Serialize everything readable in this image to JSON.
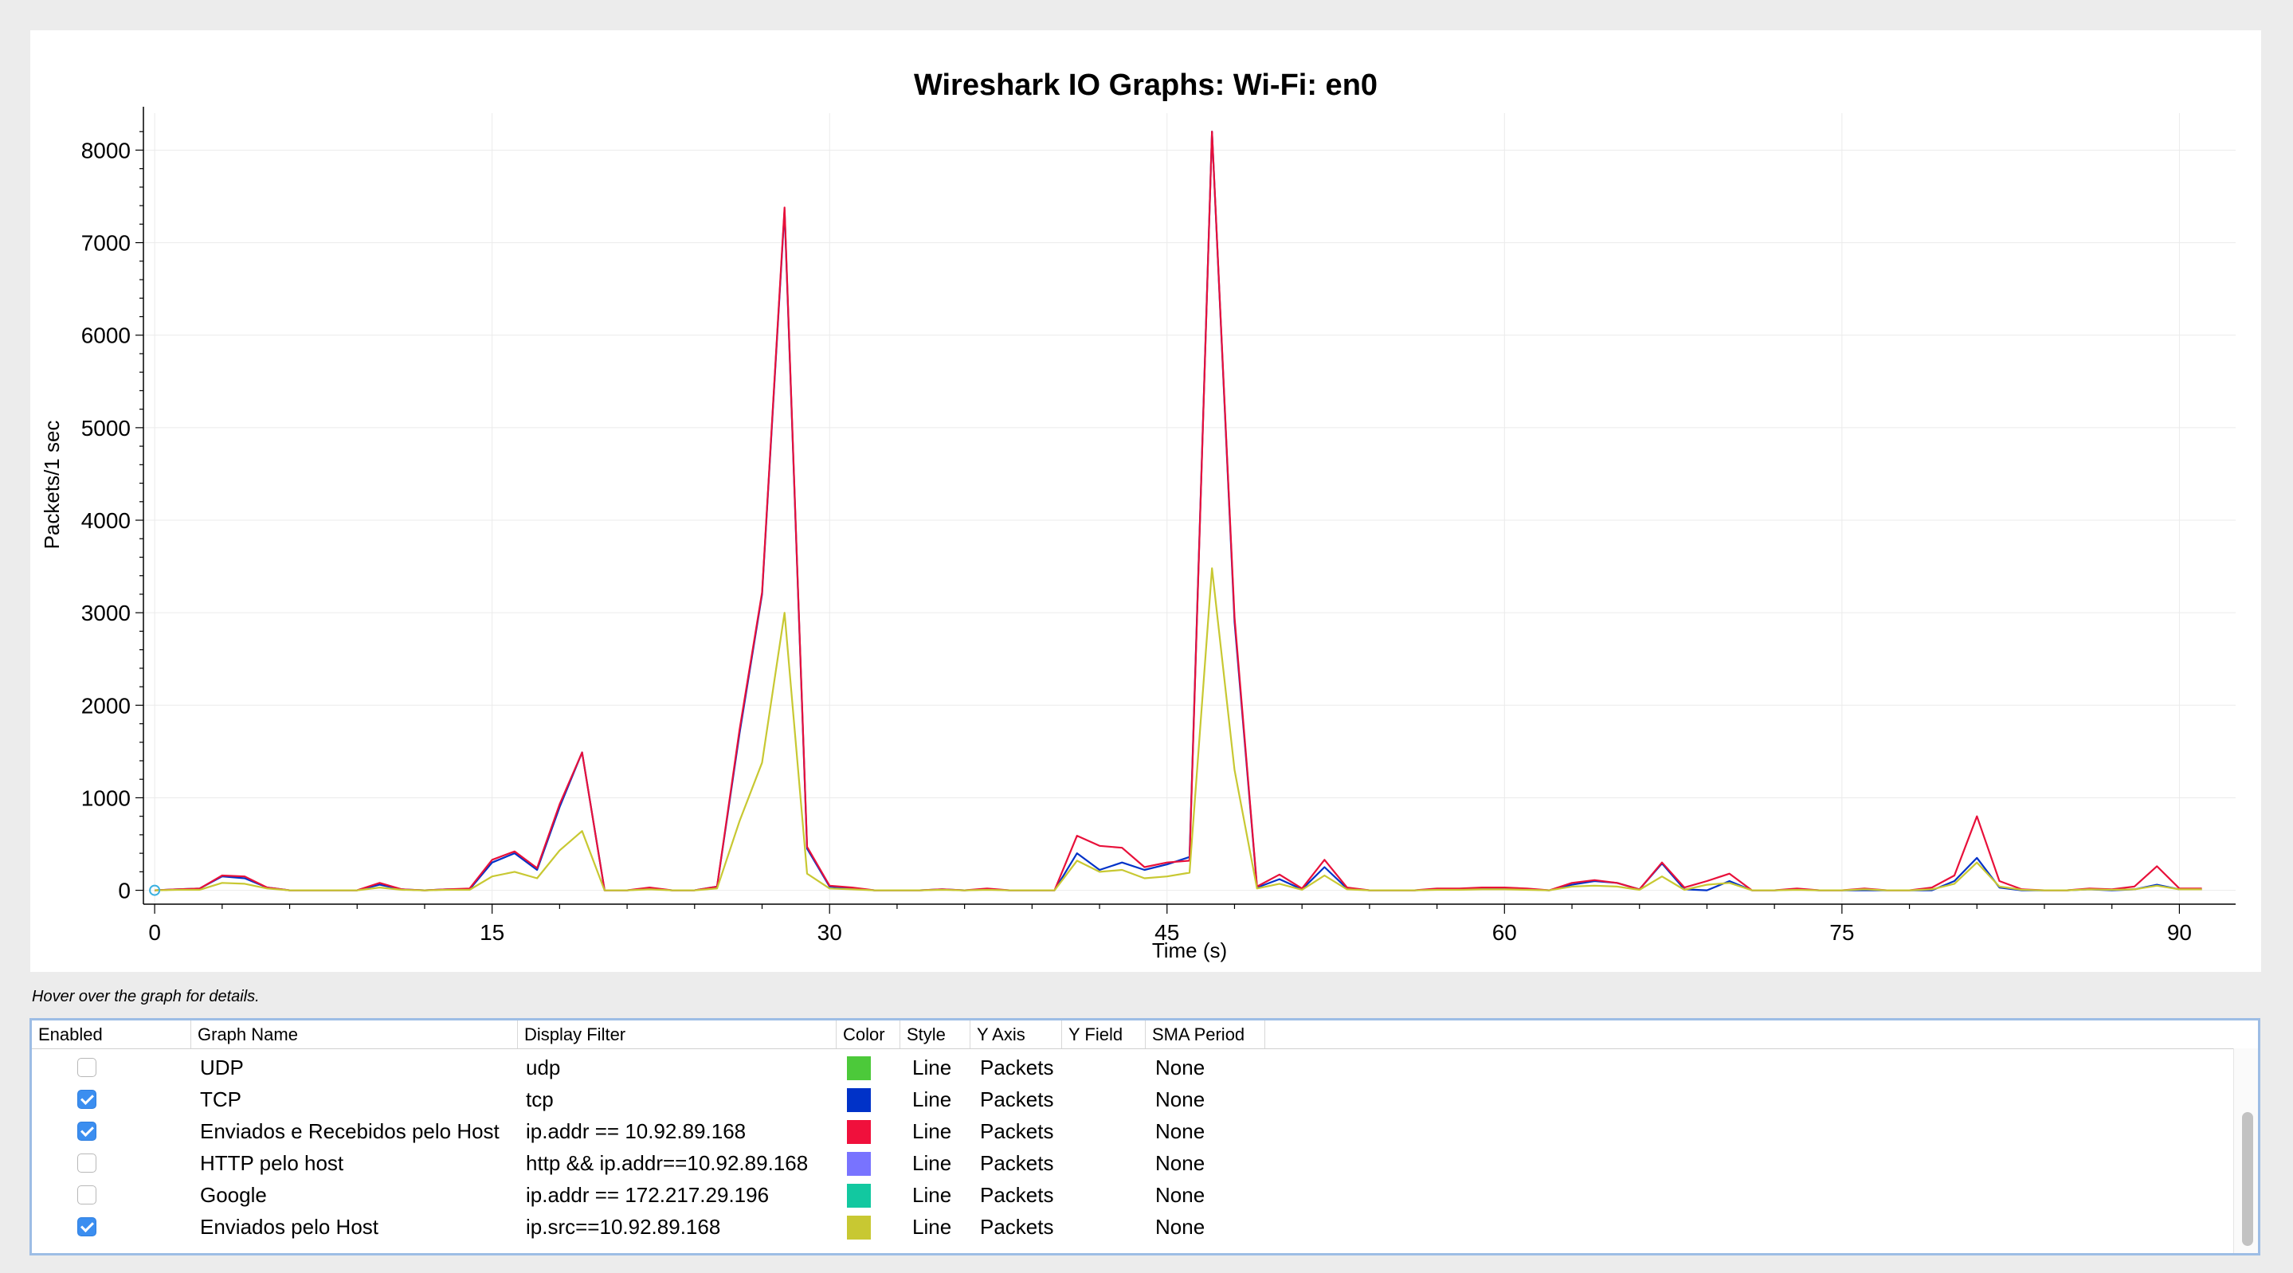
{
  "plot": {
    "title": "Wireshark IO Graphs: Wi-Fi: en0",
    "hover_hint": "Hover over the graph for details."
  },
  "chart_data": {
    "type": "line",
    "title": "Wireshark IO Graphs: Wi-Fi: en0",
    "xlabel": "Time (s)",
    "ylabel": "Packets/1 sec",
    "xlim": [
      -0.5,
      92.5
    ],
    "ylim": [
      -150,
      8400
    ],
    "x_ticks": [
      0,
      15,
      30,
      45,
      60,
      75,
      90
    ],
    "y_ticks": [
      0,
      1000,
      2000,
      3000,
      4000,
      5000,
      6000,
      7000,
      8000
    ],
    "grid": true,
    "x": [
      0,
      1,
      2,
      3,
      4,
      5,
      6,
      7,
      8,
      9,
      10,
      11,
      12,
      13,
      14,
      15,
      16,
      17,
      18,
      19,
      20,
      21,
      22,
      23,
      24,
      25,
      26,
      27,
      28,
      29,
      30,
      31,
      32,
      33,
      34,
      35,
      36,
      37,
      38,
      39,
      40,
      41,
      42,
      43,
      44,
      45,
      46,
      47,
      48,
      49,
      50,
      51,
      52,
      53,
      54,
      55,
      56,
      57,
      58,
      59,
      60,
      61,
      62,
      63,
      64,
      65,
      66,
      67,
      68,
      69,
      70,
      71,
      72,
      73,
      74,
      75,
      76,
      77,
      78,
      79,
      80,
      81,
      82,
      83,
      84,
      85,
      86,
      87,
      88,
      89,
      90,
      91
    ],
    "series": [
      {
        "color": "#0032c8",
        "values": [
          0,
          10,
          20,
          150,
          130,
          30,
          0,
          0,
          0,
          0,
          60,
          10,
          0,
          10,
          10,
          300,
          400,
          220,
          900,
          1490,
          0,
          0,
          20,
          0,
          0,
          40,
          1700,
          3200,
          7350,
          450,
          40,
          20,
          0,
          0,
          0,
          10,
          0,
          10,
          0,
          0,
          0,
          400,
          220,
          300,
          220,
          280,
          360,
          8200,
          2900,
          30,
          120,
          10,
          250,
          20,
          0,
          0,
          0,
          10,
          10,
          20,
          20,
          10,
          0,
          60,
          100,
          80,
          10,
          290,
          10,
          0,
          100,
          0,
          0,
          10,
          0,
          0,
          0,
          0,
          0,
          0,
          100,
          350,
          30,
          0,
          0,
          0,
          10,
          0,
          10,
          60,
          10,
          10
        ]
      },
      {
        "color": "#e8103a",
        "values": [
          0,
          10,
          20,
          160,
          150,
          30,
          0,
          0,
          0,
          0,
          80,
          10,
          0,
          10,
          20,
          330,
          420,
          240,
          930,
          1490,
          0,
          0,
          30,
          0,
          0,
          40,
          1740,
          3220,
          7380,
          470,
          50,
          30,
          0,
          0,
          0,
          10,
          0,
          20,
          0,
          0,
          0,
          590,
          480,
          460,
          250,
          300,
          320,
          8200,
          2950,
          40,
          170,
          20,
          330,
          30,
          0,
          0,
          0,
          20,
          20,
          30,
          30,
          20,
          0,
          80,
          110,
          80,
          10,
          300,
          30,
          100,
          180,
          0,
          0,
          20,
          0,
          0,
          20,
          0,
          0,
          30,
          160,
          800,
          100,
          10,
          0,
          0,
          20,
          10,
          40,
          260,
          20,
          20
        ]
      },
      {
        "color": "#c8c832",
        "values": [
          0,
          5,
          5,
          80,
          70,
          20,
          0,
          0,
          0,
          0,
          30,
          5,
          0,
          5,
          5,
          150,
          200,
          130,
          430,
          640,
          0,
          0,
          10,
          0,
          0,
          20,
          750,
          1380,
          3000,
          180,
          20,
          10,
          0,
          0,
          0,
          5,
          0,
          5,
          0,
          0,
          0,
          320,
          200,
          220,
          130,
          150,
          190,
          3480,
          1300,
          20,
          70,
          5,
          160,
          10,
          0,
          0,
          0,
          5,
          5,
          10,
          10,
          5,
          0,
          40,
          50,
          40,
          5,
          150,
          5,
          60,
          80,
          0,
          0,
          5,
          0,
          0,
          10,
          0,
          0,
          10,
          70,
          300,
          40,
          5,
          0,
          0,
          10,
          5,
          10,
          50,
          10,
          10
        ]
      }
    ]
  },
  "table": {
    "headers": {
      "enabled": "Enabled",
      "graph_name": "Graph Name",
      "display_filter": "Display Filter",
      "color": "Color",
      "style": "Style",
      "y_axis": "Y Axis",
      "y_field": "Y Field",
      "sma_period": "SMA Period"
    },
    "rows": [
      {
        "enabled": false,
        "name": "UDP",
        "filter": "udp",
        "color": "#4cc93a",
        "style": "Line",
        "y_axis": "Packets",
        "y_field": "",
        "sma": "None"
      },
      {
        "enabled": true,
        "name": "TCP",
        "filter": "tcp",
        "color": "#0032c8",
        "style": "Line",
        "y_axis": "Packets",
        "y_field": "",
        "sma": "None"
      },
      {
        "enabled": true,
        "name": "Enviados e Recebidos pelo Host",
        "filter": "ip.addr == 10.92.89.168",
        "color": "#f0103c",
        "style": "Line",
        "y_axis": "Packets",
        "y_field": "",
        "sma": "None"
      },
      {
        "enabled": false,
        "name": "HTTP pelo host",
        "filter": "http && ip.addr==10.92.89.168",
        "color": "#7873ff",
        "style": "Line",
        "y_axis": "Packets",
        "y_field": "",
        "sma": "None"
      },
      {
        "enabled": false,
        "name": "Google",
        "filter": "ip.addr == 172.217.29.196",
        "color": "#12c8a0",
        "style": "Line",
        "y_axis": "Packets",
        "y_field": "",
        "sma": "None"
      },
      {
        "enabled": true,
        "name": "Enviados pelo Host",
        "filter": "ip.src==10.92.89.168",
        "color": "#c8c832",
        "style": "Line",
        "y_axis": "Packets",
        "y_field": "",
        "sma": "None"
      }
    ]
  }
}
